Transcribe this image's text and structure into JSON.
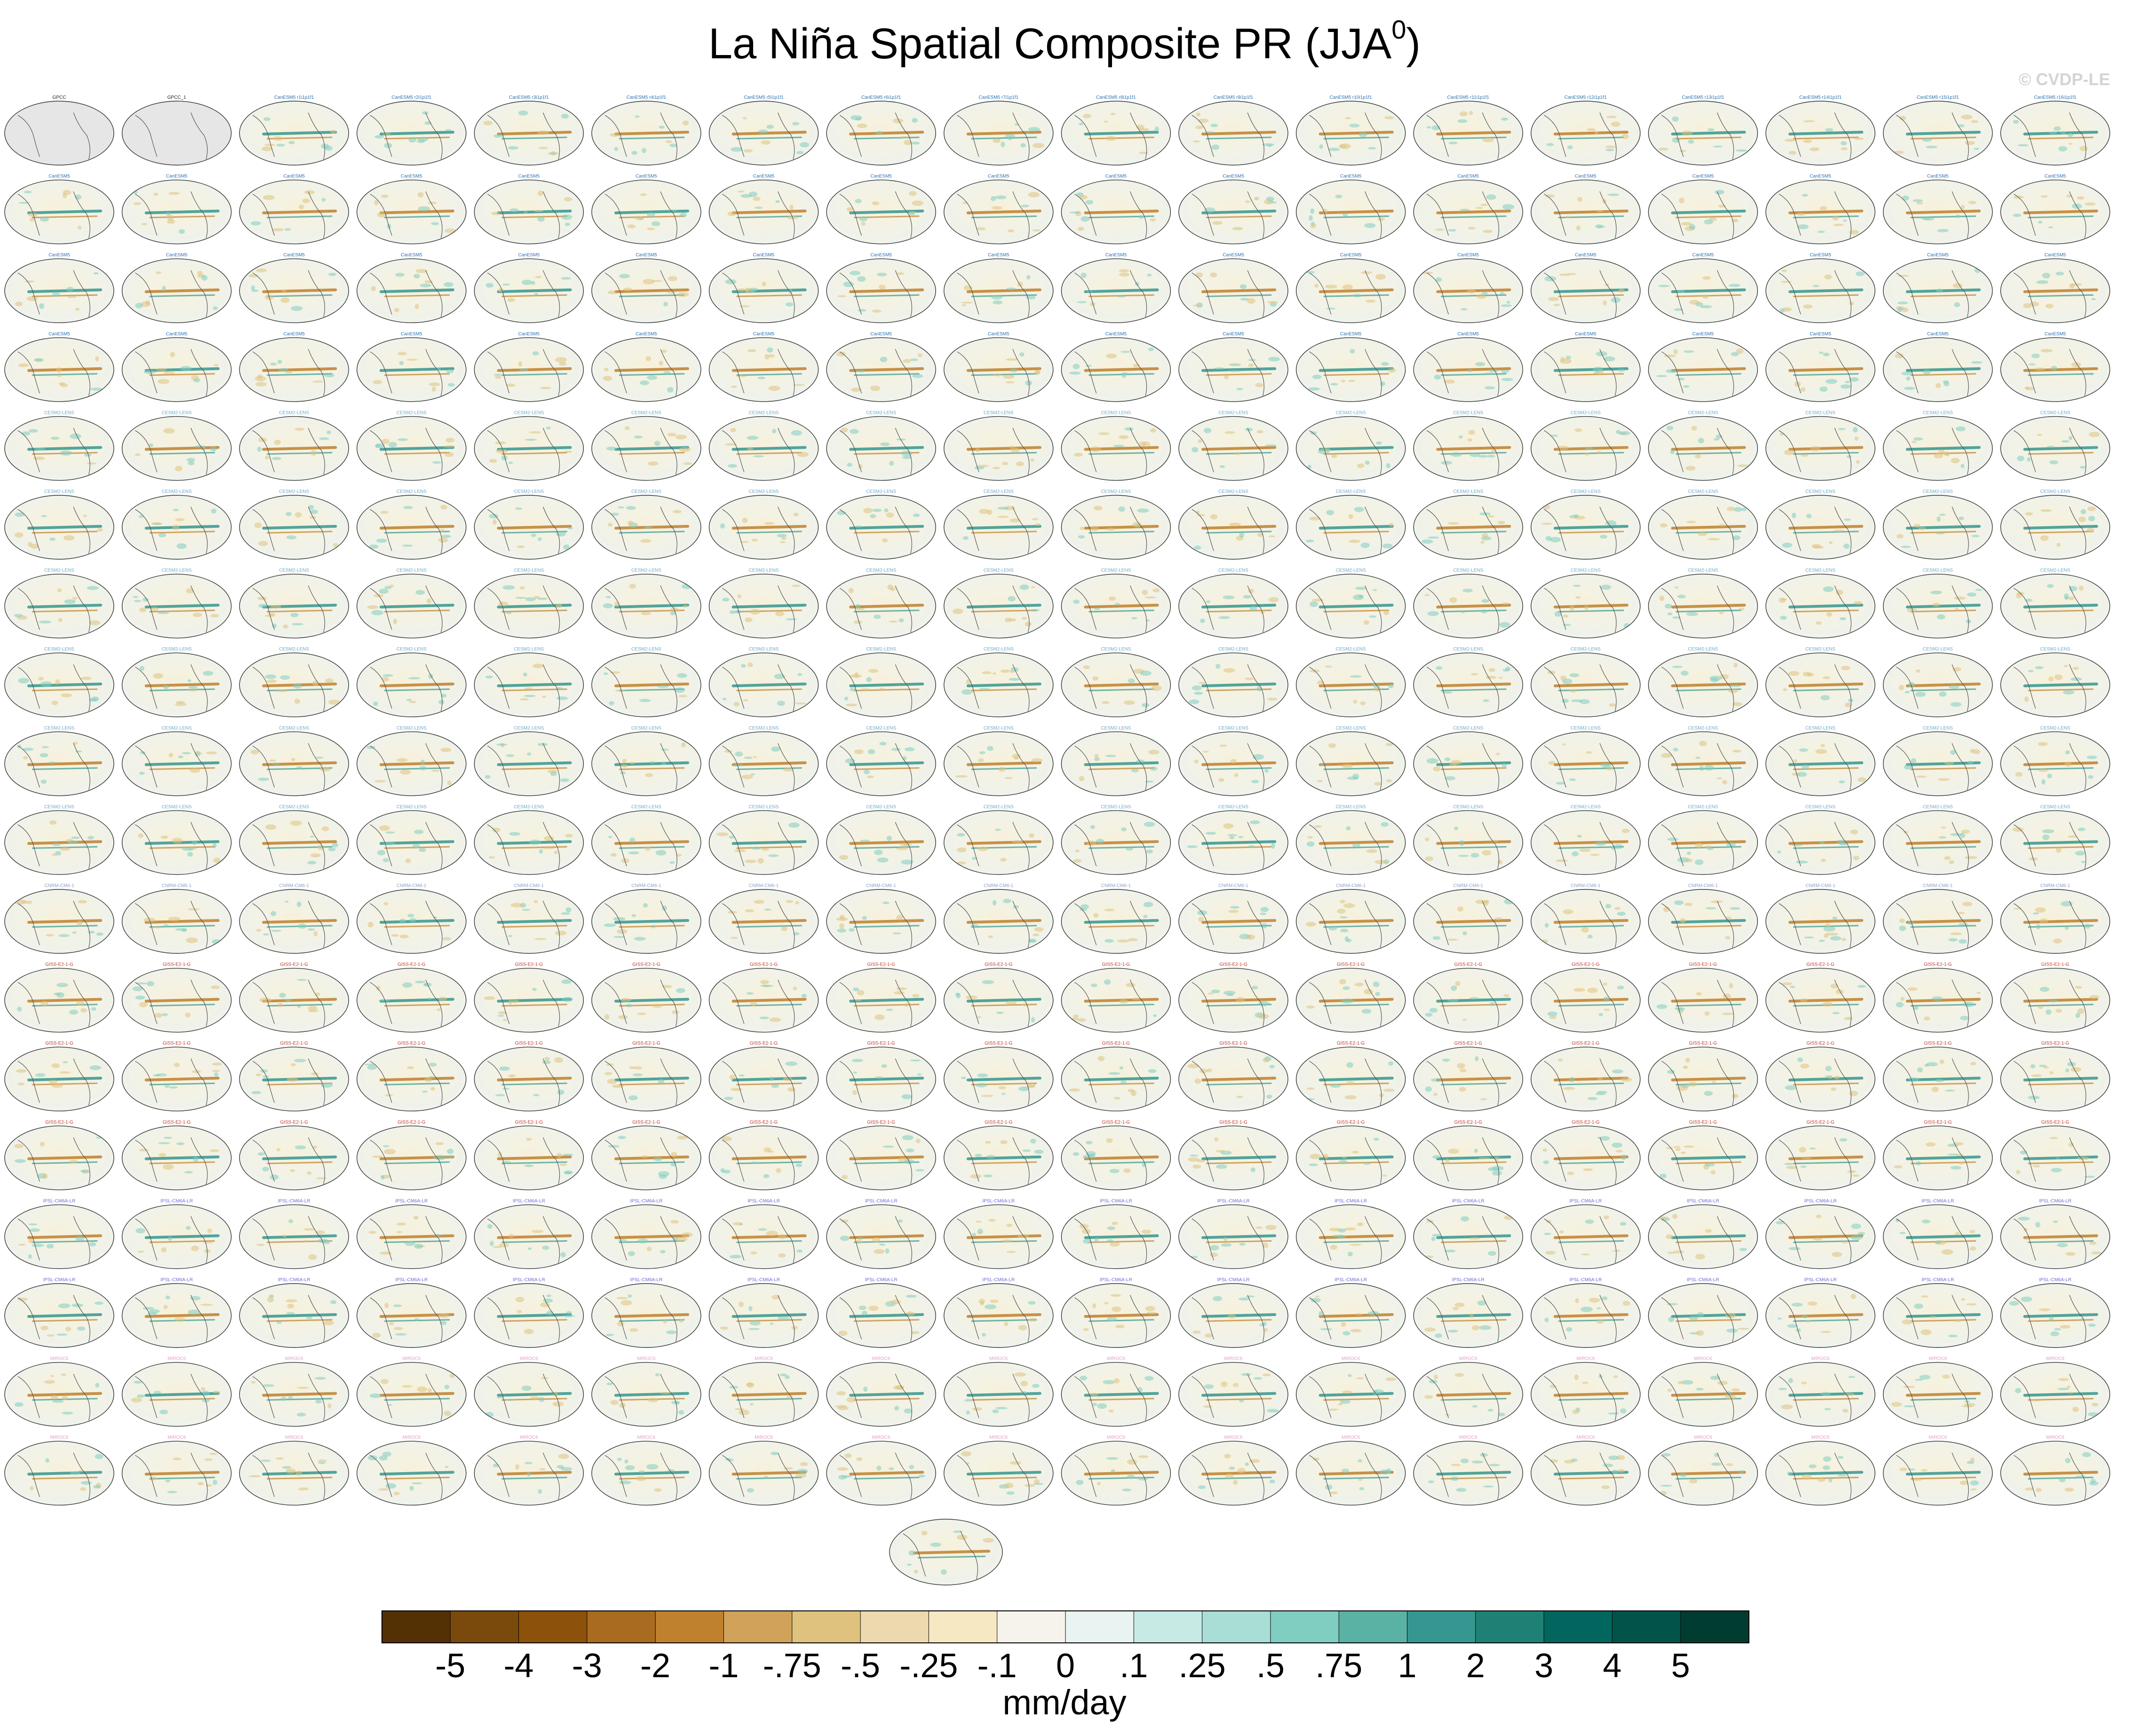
{
  "title": "La Niña Spatial Composite PR (JJA",
  "title_superscript": "0",
  "title_suffix": ")",
  "watermark": "© CVDP-LE",
  "chart_data": {
    "type": "heatmap",
    "panel_grid": {
      "rows": 18,
      "cols": 18,
      "panels": 324,
      "extra_panels": 1
    },
    "panel_titles": {
      "row0": [
        "GPCC",
        "GPCC_1",
        "CanESM5 r1i1p1f1",
        "CanESM5 r2i1p1f1",
        "CanESM5 r3i1p1f1",
        "CanESM5 r4i1p1f1",
        "CanESM5 r5i1p1f1",
        "CanESM5 r6i1p1f1",
        "CanESM5 r7i1p1f1",
        "CanESM5 r8i1p1f1",
        "CanESM5 r9i1p1f1",
        "CanESM5 r10i1p1f1",
        "CanESM5 r11i1p1f1",
        "CanESM5 r12i1p1f1",
        "CanESM5 r13i1p1f1",
        "CanESM5 r14i1p1f1",
        "CanESM5 r15i1p1f1",
        "CanESM5 r16i1p1f1"
      ],
      "row_groups": [
        {
          "rows": [
            1,
            2,
            3
          ],
          "title": "CanESM5"
        },
        {
          "rows": [
            4,
            5,
            6,
            7,
            8,
            9
          ],
          "title": "CESM2-LENS"
        },
        {
          "rows": [
            10
          ],
          "title": "CNRM-CM6-1"
        },
        {
          "rows": [
            11,
            12,
            13
          ],
          "title": "GISS-E2-1-G"
        },
        {
          "rows": [
            14,
            15
          ],
          "title": "IPSL-CM6A-LR"
        },
        {
          "rows": [
            16,
            17
          ],
          "title": "MIROC6"
        }
      ]
    },
    "colorbar": {
      "colors": [
        "#543005",
        "#7a4a0c",
        "#8c510a",
        "#a86b1f",
        "#bf812d",
        "#d0a25a",
        "#dfc27d",
        "#ecd9ad",
        "#f6e8c3",
        "#f5f3eb",
        "#e9f3f1",
        "#c7eae5",
        "#a8ded6",
        "#80cdc1",
        "#5ab2a4",
        "#35978f",
        "#1f8175",
        "#01665e",
        "#00544a",
        "#003c30"
      ],
      "tick_labels": [
        "-5",
        "-4",
        "-3",
        "-2",
        "-1",
        "-.75",
        "-.5",
        "-.25",
        "-.1",
        "0",
        ".1",
        ".25",
        ".5",
        ".75",
        "1",
        "2",
        "3",
        "4",
        "5"
      ]
    },
    "units": "mm/day"
  }
}
